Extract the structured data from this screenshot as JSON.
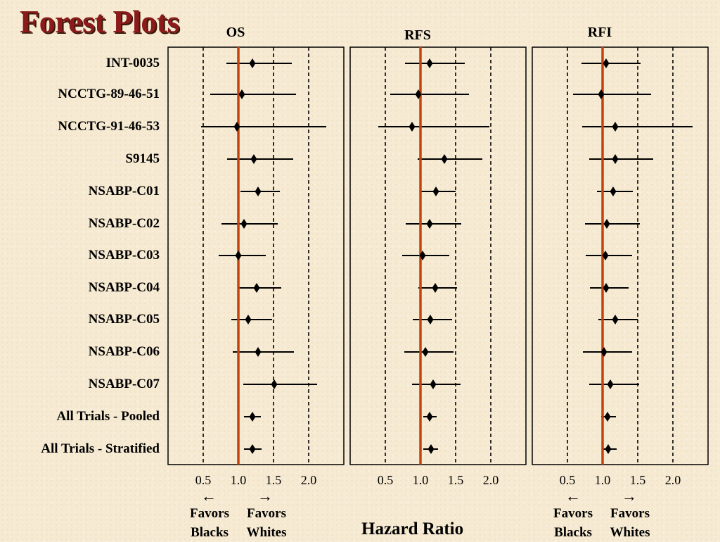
{
  "slide": {
    "title": "Forest Plots"
  },
  "chart_data": {
    "type": "forest",
    "panels": [
      {
        "title": "OS",
        "estimates": [
          1.2,
          1.05,
          0.98,
          1.22,
          1.28,
          1.08,
          1.0,
          1.26,
          1.14,
          1.28,
          1.51,
          1.2,
          1.2
        ],
        "lower": [
          0.83,
          0.6,
          0.47,
          0.84,
          1.03,
          0.76,
          0.72,
          1.01,
          0.9,
          0.92,
          1.07,
          1.08,
          1.08
        ],
        "upper": [
          1.76,
          1.82,
          2.25,
          1.78,
          1.59,
          1.56,
          1.39,
          1.61,
          1.48,
          1.79,
          2.12,
          1.32,
          1.33
        ]
      },
      {
        "title": "RFS",
        "estimates": [
          1.13,
          0.97,
          0.88,
          1.34,
          1.22,
          1.13,
          1.03,
          1.21,
          1.14,
          1.07,
          1.18,
          1.13,
          1.15
        ],
        "lower": [
          0.78,
          0.57,
          0.4,
          0.96,
          1.0,
          0.79,
          0.74,
          0.97,
          0.89,
          0.77,
          0.88,
          1.04,
          1.04
        ],
        "upper": [
          1.63,
          1.69,
          1.98,
          1.88,
          1.5,
          1.58,
          1.41,
          1.52,
          1.45,
          1.47,
          1.57,
          1.23,
          1.25
        ]
      },
      {
        "title": "RFI",
        "estimates": [
          1.05,
          0.98,
          1.18,
          1.18,
          1.15,
          1.06,
          1.04,
          1.05,
          1.18,
          1.02,
          1.11,
          1.07,
          1.08
        ],
        "lower": [
          0.7,
          0.58,
          0.71,
          0.81,
          0.92,
          0.75,
          0.76,
          0.82,
          0.94,
          0.72,
          0.81,
          0.98,
          0.99
        ],
        "upper": [
          1.54,
          1.69,
          2.28,
          1.72,
          1.43,
          1.53,
          1.42,
          1.37,
          1.5,
          1.42,
          1.52,
          1.19,
          1.2
        ]
      }
    ],
    "trials": [
      "INT-0035",
      "NCCTG-89-46-51",
      "NCCTG-91-46-53",
      "S9145",
      "NSABP-C01",
      "NSABP-C02",
      "NSABP-C03",
      "NSABP-C04",
      "NSABP-C05",
      "NSABP-C06",
      "NSABP-C07",
      "All Trials - Pooled",
      "All Trials - Stratified"
    ],
    "xticks": [
      "0.5",
      "1.0",
      "1.5",
      "2.0"
    ],
    "xlim": [
      0.0,
      2.5
    ],
    "reference_line": 1.0,
    "reference_color": "#c1440e",
    "grid_lines": [
      0.5,
      1.5,
      2.0
    ],
    "xlabel": "Hazard Ratio"
  },
  "captions": {
    "left_arrow": "←",
    "right_arrow": "→",
    "favors_blacks": "Favors\nBlacks",
    "favors_whites": "Favors\nWhites"
  }
}
